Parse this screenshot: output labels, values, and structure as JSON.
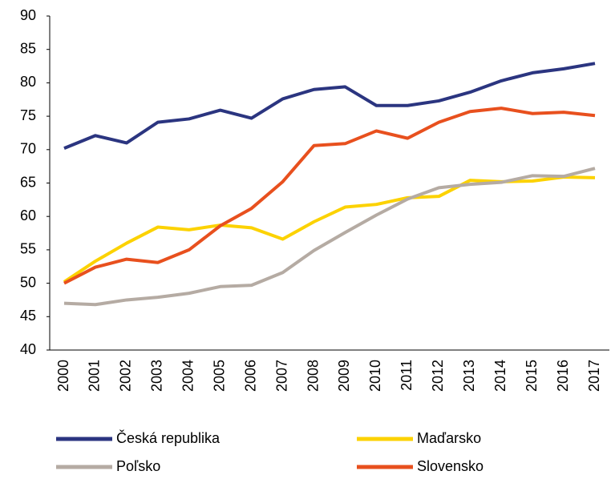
{
  "chart_data": {
    "type": "line",
    "categories": [
      "2000",
      "2001",
      "2002",
      "2003",
      "2004",
      "2005",
      "2006",
      "2007",
      "2008",
      "2009",
      "2010",
      "2011",
      "2012",
      "2013",
      "2014",
      "2015",
      "2016",
      "2017"
    ],
    "series": [
      {
        "name": "Česká republika",
        "color": "#2b3580",
        "values": [
          70.2,
          72.1,
          71.0,
          74.1,
          74.6,
          75.9,
          74.7,
          77.6,
          79.0,
          79.4,
          76.6,
          76.6,
          77.3,
          78.6,
          80.3,
          81.5,
          82.1,
          82.9
        ]
      },
      {
        "name": "Maďarsko",
        "color": "#fcd200",
        "values": [
          50.2,
          53.3,
          56.0,
          58.4,
          58.0,
          58.7,
          58.3,
          56.6,
          59.2,
          61.4,
          61.8,
          62.8,
          63.0,
          65.4,
          65.2,
          65.3,
          65.9,
          65.8
        ]
      },
      {
        "name": "Poľsko",
        "color": "#b5aba3",
        "values": [
          47.0,
          46.8,
          47.5,
          47.9,
          48.5,
          49.5,
          49.7,
          51.6,
          54.9,
          57.6,
          60.2,
          62.6,
          64.3,
          64.8,
          65.1,
          66.1,
          66.0,
          67.2
        ]
      },
      {
        "name": "Slovensko",
        "color": "#e8501e",
        "values": [
          50.0,
          52.4,
          53.6,
          53.1,
          55.0,
          58.6,
          61.2,
          65.2,
          70.6,
          70.9,
          72.8,
          71.7,
          74.1,
          75.7,
          76.2,
          75.4,
          75.6,
          75.1
        ]
      }
    ],
    "ylim": [
      40,
      90
    ],
    "yticks": [
      40,
      45,
      50,
      55,
      60,
      65,
      70,
      75,
      80,
      85,
      90
    ],
    "grid": false
  }
}
